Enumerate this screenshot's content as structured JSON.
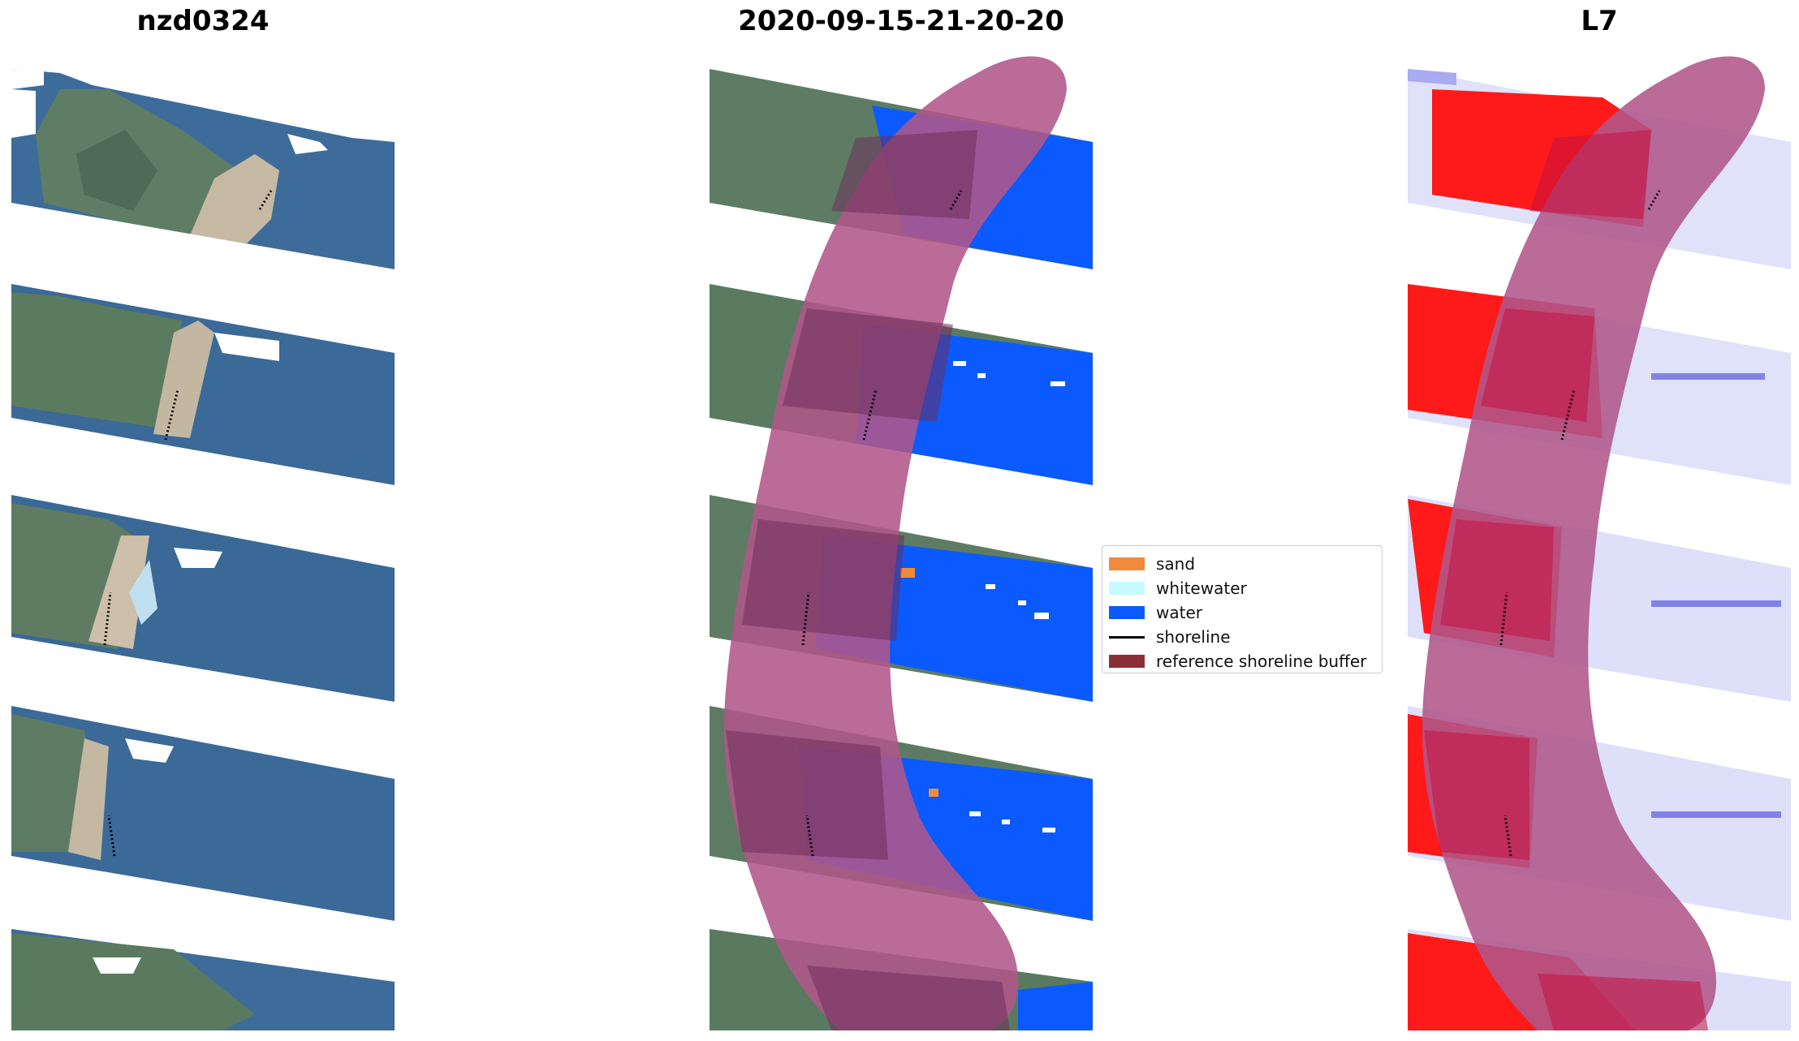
{
  "panels": [
    {
      "title": "nzd0324"
    },
    {
      "title": "2020-09-15-21-20-20"
    },
    {
      "title": "L7"
    }
  ],
  "legend": {
    "items": [
      {
        "label": "sand",
        "color": "#f08a3c",
        "kind": "patch"
      },
      {
        "label": "whitewater",
        "color": "#c8fbff",
        "kind": "patch"
      },
      {
        "label": "water",
        "color": "#0a5aff",
        "kind": "patch"
      },
      {
        "label": "shoreline",
        "color": "#000000",
        "kind": "line"
      },
      {
        "label": "reference shoreline buffer",
        "color": "#8b2e35",
        "kind": "patch"
      }
    ]
  },
  "colors": {
    "land_green": "#5c7a5e",
    "beach_sand": "#c9b9a0",
    "sea_blue_rgb": "#3f6fa0",
    "class_water": "#0a5aff",
    "buffer_overlay": "#b0578a",
    "index_red": "#ff1010",
    "index_light_blue": "#d8dcf8"
  }
}
